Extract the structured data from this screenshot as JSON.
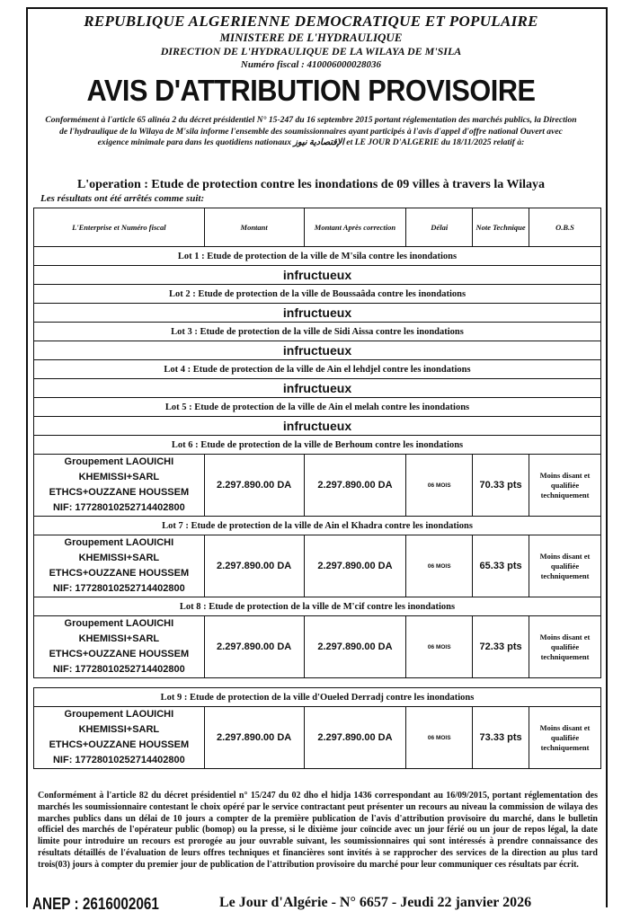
{
  "header": {
    "line1": "REPUBLIQUE ALGERIENNE DEMOCRATIQUE ET POPULAIRE",
    "line2": "MINISTERE DE L'HYDRAULIQUE",
    "line3": "DIRECTION DE L'HYDRAULIQUE DE LA WILAYA DE M'SILA",
    "line4": "Numéro fiscal : 410006000028036"
  },
  "title": "AVIS D'ATTRIBUTION PROVISOIRE",
  "intro": "Conformément à l'article 65 alinéa 2 du décret présidentiel N° 15-247 du 16 septembre 2015 portant réglementation des marchés publics, la Direction de l'hydraulique de la Wilaya de M'sila informe l'ensemble des soumissionnaires ayant participés à l'avis d'appel d'offre national Ouvert avec exigence minimale para dans les quotidiens nationaux الإقتصادية نيوز et LE JOUR D'ALGERIE du 18/11/2025 relatif à:",
  "operation": "L'operation : Etude de protection contre les inondations de 09 villes à travers la Wilaya",
  "results_intro": "Les résultats ont été arrêtés comme suit:",
  "table": {
    "headers": [
      "L'Enterprise et Numéro fiscal",
      "Montant",
      "Montant Après correction",
      "Délai",
      "Note Technique",
      "O.B.S"
    ],
    "lots": [
      {
        "title": "Lot 1 : Etude de protection de la ville de M'sila contre les inondations",
        "result": "infructueux"
      },
      {
        "title": "Lot 2 : Etude de protection de la ville de Boussaâda contre les inondations",
        "result": "infructueux"
      },
      {
        "title": "Lot 3 : Etude de protection de la ville de Sidi Aissa contre les inondations",
        "result": "infructueux"
      },
      {
        "title": "Lot 4 : Etude de protection de la ville de Ain el lehdjel contre les inondations",
        "result": "infructueux"
      },
      {
        "title": "Lot 5 : Etude de protection de la ville de Ain el melah contre les inondations",
        "result": "infructueux"
      },
      {
        "title": "Lot 6 : Etude de protection de la ville de Berhoum contre les inondations",
        "ent1": "Groupement LAOUICHI",
        "ent2": "KHEMISSI+SARL",
        "ent3": "ETHCS+OUZZANE HOUSSEM",
        "nif": "NIF: 17728010252714402800",
        "montant": "2.297.890.00 DA",
        "montant_corr": "2.297.890.00 DA",
        "delai": "06 MOIS",
        "note": "70.33 pts",
        "obs": "Moins disant et qualifiée techniquement"
      },
      {
        "title": "Lot 7 : Etude de protection de la ville de Ain el Khadra contre les inondations",
        "ent1": "Groupement LAOUICHI",
        "ent2": "KHEMISSI+SARL",
        "ent3": "ETHCS+OUZZANE HOUSSEM",
        "nif": "NIF: 17728010252714402800",
        "montant": "2.297.890.00 DA",
        "montant_corr": "2.297.890.00 DA",
        "delai": "06 MOIS",
        "note": "65.33 pts",
        "obs": "Moins disant et qualifiée techniquement"
      },
      {
        "title": "Lot 8 : Etude de protection de la ville de M'cif contre les inondations",
        "ent1": "Groupement LAOUICHI",
        "ent2": "KHEMISSI+SARL",
        "ent3": "ETHCS+OUZZANE HOUSSEM",
        "nif": "NIF: 17728010252714402800",
        "montant": "2.297.890.00 DA",
        "montant_corr": "2.297.890.00 DA",
        "delai": "06 MOIS",
        "note": "72.33 pts",
        "obs": "Moins disant et qualifiée techniquement"
      },
      {
        "title": "Lot 9 : Etude de protection de la ville d'Oueled Derradj contre les inondations",
        "ent1": "Groupement LAOUICHI",
        "ent2": "KHEMISSI+SARL",
        "ent3": "ETHCS+OUZZANE HOUSSEM",
        "nif": "NIF: 17728010252714402800",
        "montant": "2.297.890.00 DA",
        "montant_corr": "2.297.890.00 DA",
        "delai": "06 MOIS",
        "note": "73.33 pts",
        "obs": "Moins disant et qualifiée techniquement"
      }
    ]
  },
  "footer_text": "Conformément à l'article 82 du décret présidentiel n° 15/247 du 02 dho el hidja 1436 correspondant au 16/09/2015, portant réglementation des marchés les soumissionnaire contestant le choix opéré par le service contractant peut présenter un recours au niveau la commission de wilaya des marches publics dans un délai de 10 jours a compter de la première publication de l'avis d'attribution provisoire du marché, dans le bulletin officiel des marchés de l'opérateur public (bomop) ou la presse, si le dixième jour coïncide avec un jour férié ou un jour de repos légal, la date limite pour introduire un recours est prorogée au jour ouvrable suivant, les soumissionnaires qui sont intéressés à prendre connaissance des résultats détaillés de l'évaluation de leurs offres techniques et financières sont invités à se rapprocher des services de la direction au plus tard trois(03) jours à compter du premier jour de publication de l'attribution provisoire du marché pour leur communiquer ces résultats par écrit.",
  "anep": "ANEP : 2616002061",
  "publication": "Le Jour d'Algérie - N° 6657 - Jeudi 22 janvier 2026"
}
